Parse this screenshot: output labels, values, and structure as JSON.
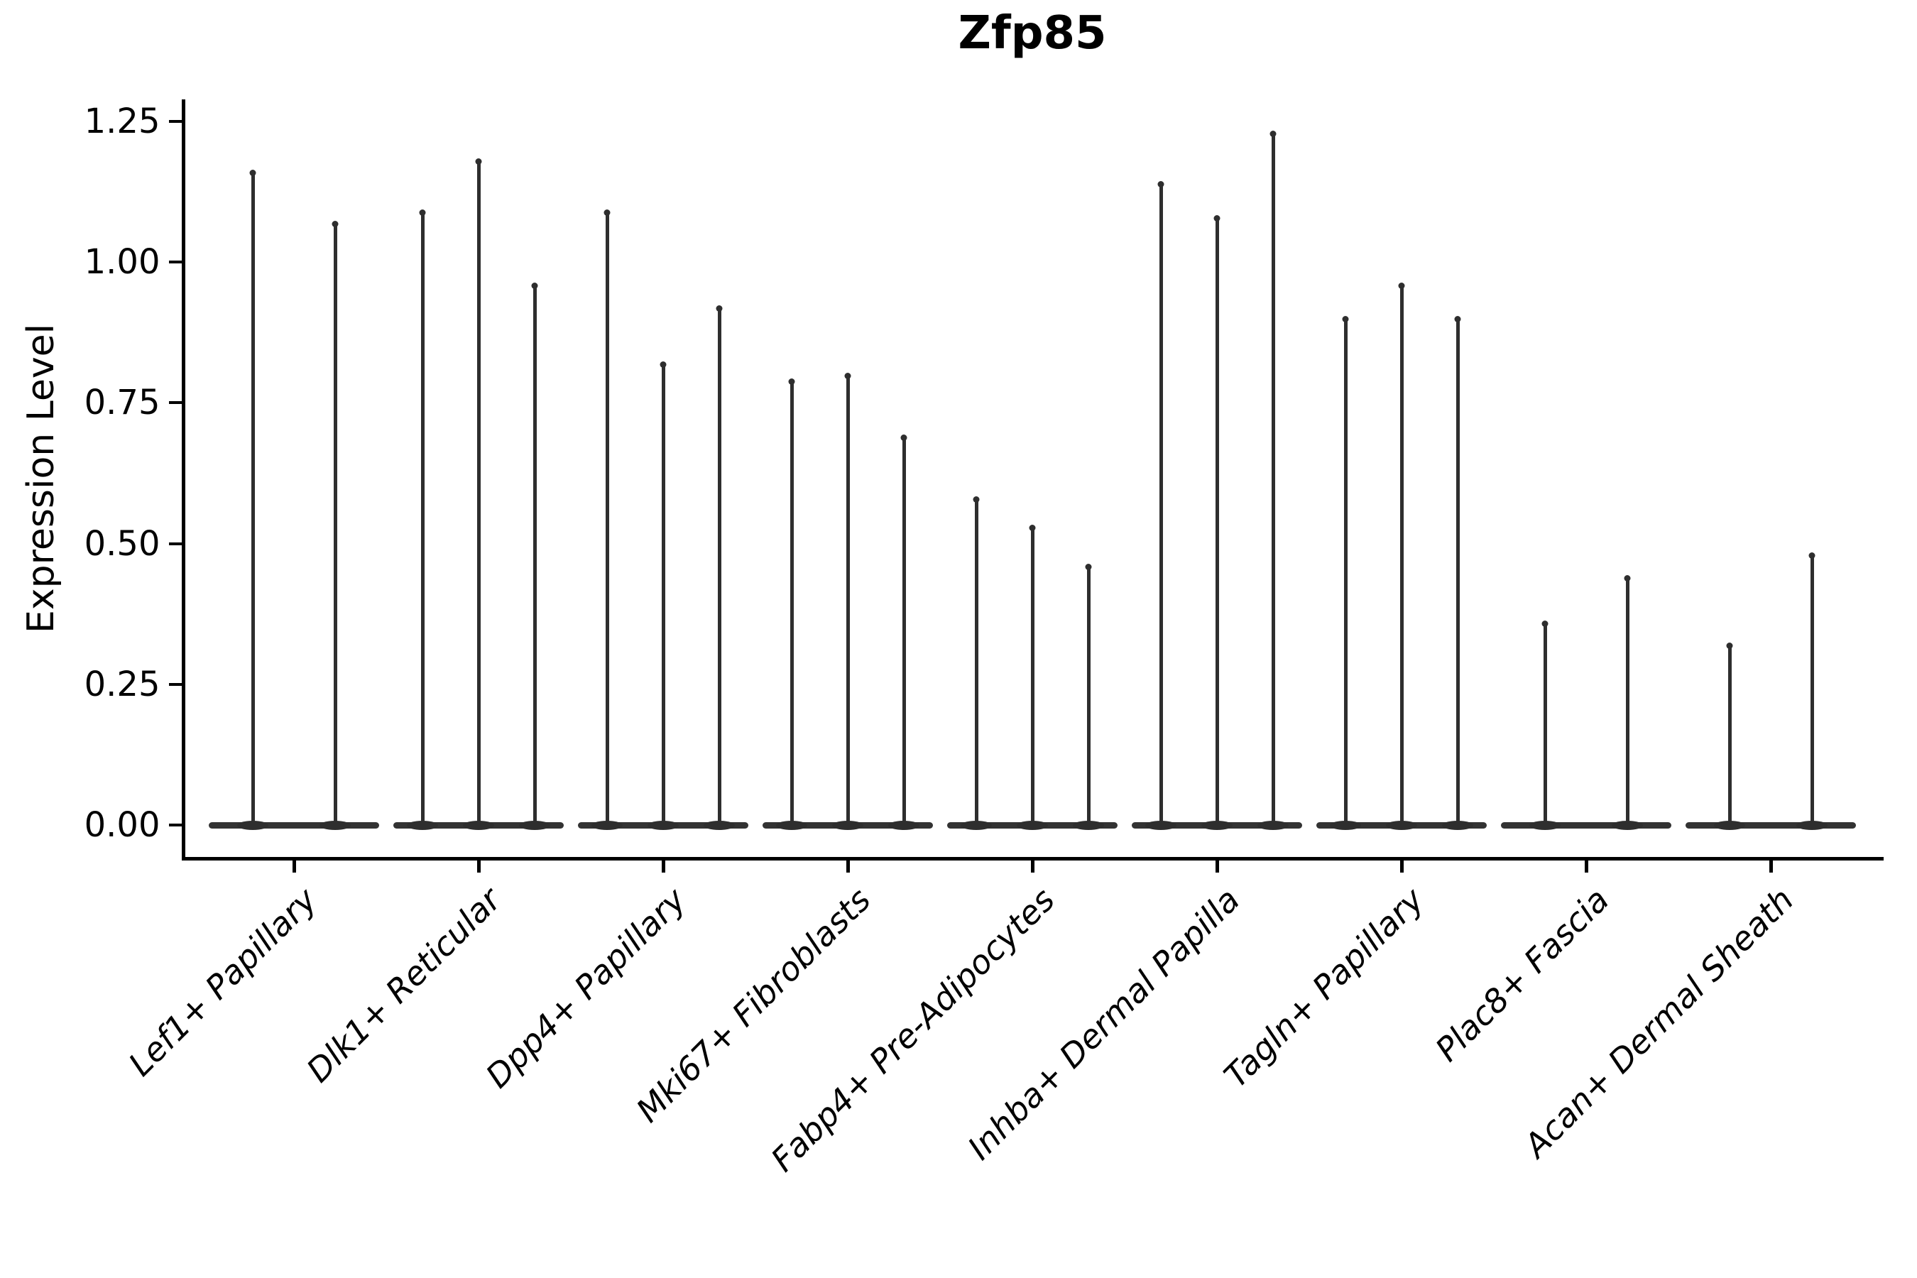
{
  "figure": {
    "title": "Zfp85",
    "ylabel": "Expression Level"
  },
  "chart_data": {
    "type": "violin",
    "title": "Zfp85",
    "xlabel": "",
    "ylabel": "Expression Level",
    "ylim": [
      -0.06,
      1.29
    ],
    "yticks": [
      0.0,
      0.25,
      0.5,
      0.75,
      1.0,
      1.25
    ],
    "ytick_labels": [
      "0.00",
      "0.25",
      "0.50",
      "0.75",
      "1.00",
      "1.25"
    ],
    "grid": false,
    "legend": null,
    "xtick_label_rotation_deg": 45,
    "categories": [
      "Lef1+ Papillary",
      "Dlk1+ Reticular",
      "Dpp4+ Papillary",
      "Mki67+ Fibroblasts",
      "Fabp4+ Pre-Adipocytes",
      "Inhba+ Dermal Papilla",
      "Tagln+ Papillary",
      "Plac8+ Fascia",
      "Acan+ Dermal Sheath"
    ],
    "groups": [
      {
        "category": "Lef1+ Papillary",
        "spike_values": [
          1.16,
          1.07
        ]
      },
      {
        "category": "Dlk1+ Reticular",
        "spike_values": [
          1.09,
          1.18,
          0.96
        ]
      },
      {
        "category": "Dpp4+ Papillary",
        "spike_values": [
          1.09,
          0.82,
          0.92
        ]
      },
      {
        "category": "Mki67+ Fibroblasts",
        "spike_values": [
          0.79,
          0.8,
          0.69
        ]
      },
      {
        "category": "Fabp4+ Pre-Adipocytes",
        "spike_values": [
          0.58,
          0.53,
          0.46
        ]
      },
      {
        "category": "Inhba+ Dermal Papilla",
        "spike_values": [
          1.14,
          1.08,
          1.23
        ]
      },
      {
        "category": "Tagln+ Papillary",
        "spike_values": [
          0.9,
          0.96,
          0.9
        ]
      },
      {
        "category": "Plac8+ Fascia",
        "spike_values": [
          0.36,
          0.44
        ]
      },
      {
        "category": "Acan+ Dermal Sheath",
        "spike_values": [
          0.32,
          0.48
        ]
      }
    ],
    "style": {
      "violin_color": "#2e2e2e",
      "axis_color": "#000000",
      "background": "#ffffff"
    }
  }
}
